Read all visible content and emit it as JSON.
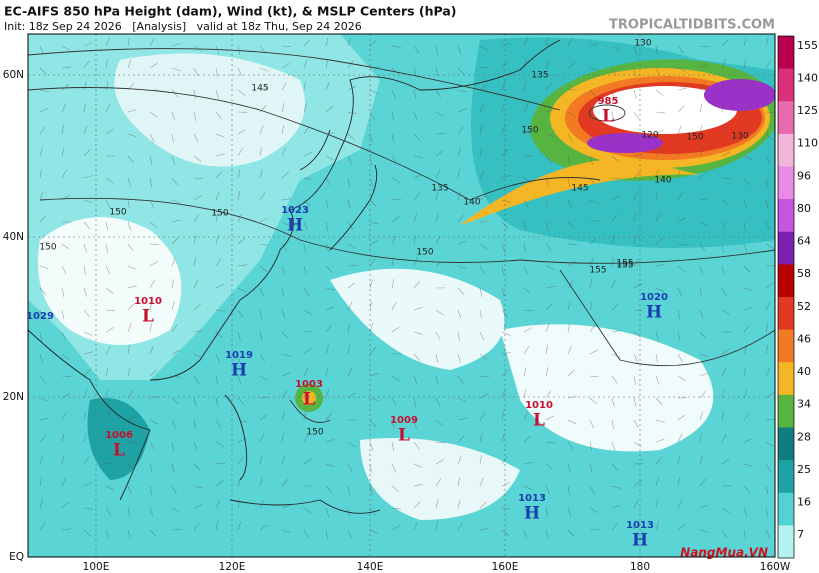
{
  "header": {
    "title": "EC-AIFS 850 hPa Height (dam), Wind (kt), & MSLP Centers (hPa)",
    "subtitle": "Init: 18z Sep 24 2026   [Analysis]   valid at 18z Thu, Sep 24 2026",
    "source": "TROPICALTIDBITS.COM"
  },
  "map": {
    "lat_labels": [
      "60N",
      "40N",
      "20N",
      "EQ"
    ],
    "lon_labels": [
      "100E",
      "120E",
      "140E",
      "160E",
      "180",
      "160W"
    ],
    "centers": [
      {
        "pressure": "1029"
      },
      {
        "pressure": "1010",
        "letter": "L"
      },
      {
        "pressure": "1023",
        "letter": "H"
      },
      {
        "pressure": "1019",
        "letter": "H"
      },
      {
        "pressure": "1003",
        "letter": "L"
      },
      {
        "pressure": "1009",
        "letter": "L"
      },
      {
        "pressure": "1010",
        "letter": "L"
      },
      {
        "pressure": "1020",
        "letter": "H"
      },
      {
        "pressure": "1013",
        "letter": "H"
      },
      {
        "pressure": "1013",
        "letter": "H"
      },
      {
        "pressure": "985",
        "letter": "L"
      },
      {
        "pressure": "1006",
        "letter": "L"
      }
    ],
    "contour_labels": [
      "135",
      "145",
      "150",
      "150",
      "150",
      "150",
      "155",
      "135",
      "140",
      "145",
      "150",
      "150",
      "155",
      "155",
      "130",
      "120",
      "140",
      "130",
      "150"
    ]
  },
  "colorbar": {
    "labels": [
      "155",
      "140",
      "125",
      "110",
      "96",
      "80",
      "64",
      "58",
      "52",
      "46",
      "40",
      "34",
      "28",
      "25",
      "16",
      "7"
    ],
    "colors": [
      "#b8004f",
      "#d8307a",
      "#e66aac",
      "#f2b6dc",
      "#e98ae8",
      "#c456e0",
      "#7d1fb0",
      "#b80000",
      "#e23a22",
      "#f27a22",
      "#f4b624",
      "#58b440",
      "#107e80",
      "#1fa2a4",
      "#52d2d2",
      "#b4f2f2"
    ]
  },
  "watermark": "NangMua.VN"
}
